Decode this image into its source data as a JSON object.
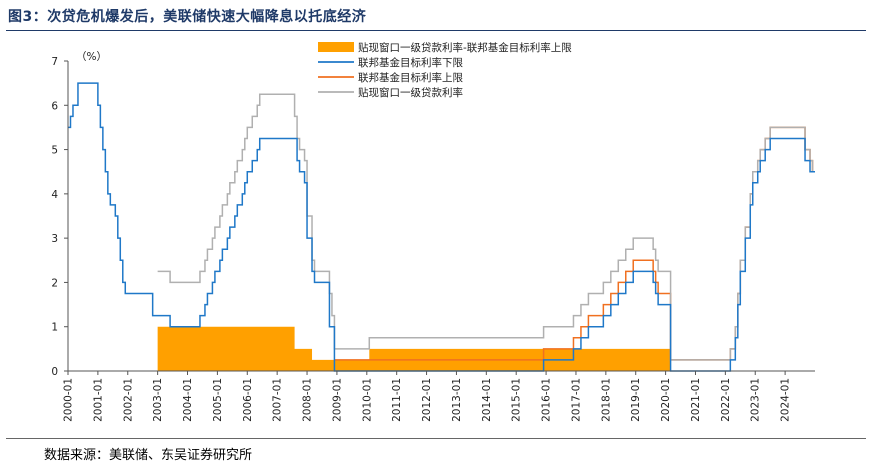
{
  "page": {
    "title": "图3：次贷危机爆发后，美联储快速大幅降息以托底经济",
    "source": "数据来源：美联储、东吴证券研究所"
  },
  "chart_data": {
    "type": "line",
    "unit_label": "（%）",
    "xlabel": "",
    "ylabel": "",
    "ylim": [
      0,
      7
    ],
    "yticks": [
      0,
      1,
      2,
      3,
      4,
      5,
      6,
      7
    ],
    "xlim": [
      "2000-01",
      "2024-12"
    ],
    "xticks": [
      "2000-01",
      "2001-01",
      "2002-01",
      "2003-01",
      "2004-01",
      "2005-01",
      "2006-01",
      "2007-01",
      "2008-01",
      "2009-01",
      "2010-01",
      "2011-01",
      "2012-01",
      "2013-01",
      "2014-01",
      "2015-01",
      "2016-01",
      "2017-01",
      "2018-01",
      "2019-01",
      "2020-01",
      "2021-01",
      "2022-01",
      "2023-01",
      "2024-01"
    ],
    "grid": false,
    "legend_position": "top-center",
    "legend": [
      {
        "name": "贴现窗口一级贷款利率-联邦基金目标利率上限",
        "kind": "area",
        "color": "#ffa000"
      },
      {
        "name": "联邦基金目标利率下限",
        "kind": "line",
        "color": "#1f78c8"
      },
      {
        "name": "联邦基金目标利率上限",
        "kind": "line",
        "color": "#f07020"
      },
      {
        "name": "贴现窗口一级贷款利率",
        "kind": "line",
        "color": "#b0b0b0"
      }
    ],
    "series": [
      {
        "name": "贴现窗口一级贷款利率-联邦基金目标利率上限",
        "kind": "area",
        "color": "#ffa000",
        "steps": [
          [
            "2003-01",
            1.0
          ],
          [
            "2007-08",
            0.5
          ],
          [
            "2008-03",
            0.25
          ],
          [
            "2010-02",
            0.5
          ],
          [
            "2015-12",
            0.5
          ],
          [
            "2020-03",
            0
          ]
        ]
      },
      {
        "name": "联邦基金目标利率上限",
        "kind": "line",
        "color": "#f07020",
        "steps": [
          [
            "2008-12",
            0.25
          ],
          [
            "2015-12",
            0.5
          ],
          [
            "2016-12",
            0.75
          ],
          [
            "2017-03",
            1.0
          ],
          [
            "2017-06",
            1.25
          ],
          [
            "2017-12",
            1.5
          ],
          [
            "2018-03",
            1.75
          ],
          [
            "2018-06",
            2.0
          ],
          [
            "2018-09",
            2.25
          ],
          [
            "2018-12",
            2.5
          ],
          [
            "2019-08",
            2.25
          ],
          [
            "2019-09",
            2.0
          ],
          [
            "2019-10",
            1.75
          ],
          [
            "2020-03",
            0.25
          ],
          [
            "2022-03",
            0.5
          ],
          [
            "2022-05",
            1.0
          ],
          [
            "2022-06",
            1.75
          ],
          [
            "2022-07",
            2.5
          ],
          [
            "2022-09",
            3.25
          ],
          [
            "2022-11",
            4.0
          ],
          [
            "2022-12",
            4.5
          ],
          [
            "2023-02",
            4.75
          ],
          [
            "2023-03",
            5.0
          ],
          [
            "2023-05",
            5.25
          ],
          [
            "2023-07",
            5.5
          ],
          [
            "2024-09",
            5.0
          ],
          [
            "2024-11",
            4.75
          ],
          [
            "2024-12",
            4.5
          ]
        ]
      },
      {
        "name": "贴现窗口一级贷款利率",
        "kind": "line",
        "color": "#b0b0b0",
        "steps": [
          [
            "2003-01",
            2.25
          ],
          [
            "2003-06",
            2.0
          ],
          [
            "2004-06",
            2.25
          ],
          [
            "2004-08",
            2.5
          ],
          [
            "2004-09",
            2.75
          ],
          [
            "2004-11",
            3.0
          ],
          [
            "2004-12",
            3.25
          ],
          [
            "2005-02",
            3.5
          ],
          [
            "2005-03",
            3.75
          ],
          [
            "2005-05",
            4.0
          ],
          [
            "2005-06",
            4.25
          ],
          [
            "2005-08",
            4.5
          ],
          [
            "2005-09",
            4.75
          ],
          [
            "2005-11",
            5.0
          ],
          [
            "2005-12",
            5.25
          ],
          [
            "2006-01",
            5.5
          ],
          [
            "2006-03",
            5.75
          ],
          [
            "2006-05",
            6.0
          ],
          [
            "2006-06",
            6.25
          ],
          [
            "2007-08",
            5.75
          ],
          [
            "2007-09",
            5.25
          ],
          [
            "2007-10",
            5.0
          ],
          [
            "2007-12",
            4.75
          ],
          [
            "2008-01",
            3.5
          ],
          [
            "2008-03",
            2.5
          ],
          [
            "2008-04",
            2.25
          ],
          [
            "2008-10",
            1.75
          ],
          [
            "2008-11",
            1.25
          ],
          [
            "2008-12",
            0.5
          ],
          [
            "2010-02",
            0.75
          ],
          [
            "2015-12",
            1.0
          ],
          [
            "2016-12",
            1.25
          ],
          [
            "2017-03",
            1.5
          ],
          [
            "2017-06",
            1.75
          ],
          [
            "2017-12",
            2.0
          ],
          [
            "2018-03",
            2.25
          ],
          [
            "2018-06",
            2.5
          ],
          [
            "2018-09",
            2.75
          ],
          [
            "2018-12",
            3.0
          ],
          [
            "2019-08",
            2.75
          ],
          [
            "2019-09",
            2.5
          ],
          [
            "2019-10",
            2.25
          ],
          [
            "2020-03",
            0.25
          ],
          [
            "2022-03",
            0.5
          ],
          [
            "2022-05",
            1.0
          ],
          [
            "2022-06",
            1.75
          ],
          [
            "2022-07",
            2.5
          ],
          [
            "2022-09",
            3.25
          ],
          [
            "2022-11",
            4.0
          ],
          [
            "2022-12",
            4.5
          ],
          [
            "2023-02",
            4.75
          ],
          [
            "2023-03",
            5.0
          ],
          [
            "2023-05",
            5.25
          ],
          [
            "2023-07",
            5.5
          ],
          [
            "2024-09",
            5.0
          ],
          [
            "2024-11",
            4.75
          ],
          [
            "2024-12",
            4.5
          ]
        ]
      },
      {
        "name": "联邦基金目标利率下限",
        "kind": "line",
        "color": "#1f78c8",
        "steps": [
          [
            "2000-01",
            5.5
          ],
          [
            "2000-02",
            5.75
          ],
          [
            "2000-03",
            6.0
          ],
          [
            "2000-05",
            6.5
          ],
          [
            "2001-01",
            6.0
          ],
          [
            "2001-02",
            5.5
          ],
          [
            "2001-03",
            5.0
          ],
          [
            "2001-04",
            4.5
          ],
          [
            "2001-05",
            4.0
          ],
          [
            "2001-06",
            3.75
          ],
          [
            "2001-08",
            3.5
          ],
          [
            "2001-09",
            3.0
          ],
          [
            "2001-10",
            2.5
          ],
          [
            "2001-11",
            2.0
          ],
          [
            "2001-12",
            1.75
          ],
          [
            "2002-11",
            1.25
          ],
          [
            "2003-06",
            1.0
          ],
          [
            "2004-06",
            1.25
          ],
          [
            "2004-08",
            1.5
          ],
          [
            "2004-09",
            1.75
          ],
          [
            "2004-11",
            2.0
          ],
          [
            "2004-12",
            2.25
          ],
          [
            "2005-02",
            2.5
          ],
          [
            "2005-03",
            2.75
          ],
          [
            "2005-05",
            3.0
          ],
          [
            "2005-06",
            3.25
          ],
          [
            "2005-08",
            3.5
          ],
          [
            "2005-09",
            3.75
          ],
          [
            "2005-11",
            4.0
          ],
          [
            "2005-12",
            4.25
          ],
          [
            "2006-01",
            4.5
          ],
          [
            "2006-03",
            4.75
          ],
          [
            "2006-05",
            5.0
          ],
          [
            "2006-06",
            5.25
          ],
          [
            "2007-09",
            4.75
          ],
          [
            "2007-10",
            4.5
          ],
          [
            "2007-12",
            4.25
          ],
          [
            "2008-01",
            3.0
          ],
          [
            "2008-03",
            2.25
          ],
          [
            "2008-04",
            2.0
          ],
          [
            "2008-10",
            1.0
          ],
          [
            "2008-12",
            0.0
          ],
          [
            "2015-12",
            0.25
          ],
          [
            "2016-12",
            0.5
          ],
          [
            "2017-03",
            0.75
          ],
          [
            "2017-06",
            1.0
          ],
          [
            "2017-12",
            1.25
          ],
          [
            "2018-03",
            1.5
          ],
          [
            "2018-06",
            1.75
          ],
          [
            "2018-09",
            2.0
          ],
          [
            "2018-12",
            2.25
          ],
          [
            "2019-08",
            2.0
          ],
          [
            "2019-09",
            1.75
          ],
          [
            "2019-10",
            1.5
          ],
          [
            "2020-03",
            0.0
          ],
          [
            "2022-03",
            0.25
          ],
          [
            "2022-05",
            0.75
          ],
          [
            "2022-06",
            1.5
          ],
          [
            "2022-07",
            2.25
          ],
          [
            "2022-09",
            3.0
          ],
          [
            "2022-11",
            3.75
          ],
          [
            "2022-12",
            4.25
          ],
          [
            "2023-02",
            4.5
          ],
          [
            "2023-03",
            4.75
          ],
          [
            "2023-05",
            5.0
          ],
          [
            "2023-07",
            5.25
          ],
          [
            "2024-09",
            4.75
          ],
          [
            "2024-11",
            4.5
          ],
          [
            "2024-12",
            4.5
          ]
        ]
      }
    ]
  }
}
